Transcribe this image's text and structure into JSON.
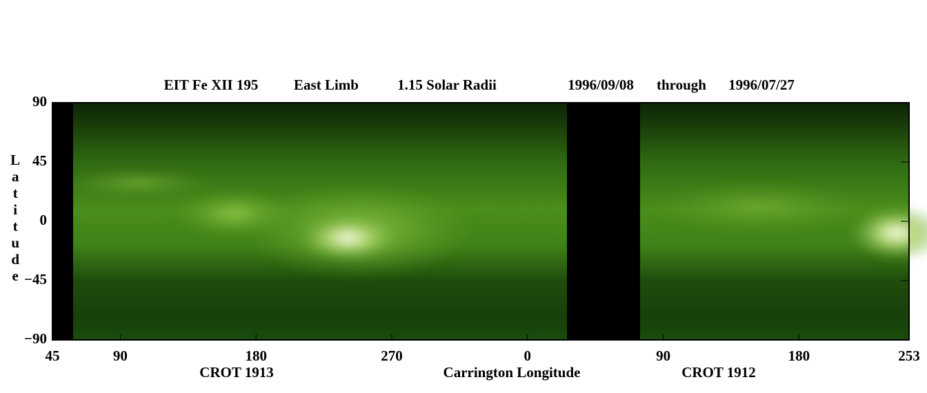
{
  "chart_data": {
    "type": "synoptic-map",
    "title": [
      "EIT Fe XII 195",
      "East Limb",
      "1.15 Solar Radii",
      "1996/09/08",
      "through",
      "1996/07/27"
    ],
    "y_label": "Latitude",
    "annotations": [
      "CROT 1913",
      "Carrington Longitude",
      "CROT 1912"
    ],
    "xlim": [
      45,
      613
    ],
    "xticks": [
      45,
      90,
      180,
      270,
      {
        "value": 360,
        "label": "0"
      },
      {
        "value": 450,
        "label": "90"
      },
      {
        "value": 540,
        "label": "180"
      },
      {
        "value": 613,
        "label": "253"
      }
    ],
    "ylim": [
      -90,
      90
    ],
    "yticks": [
      90,
      45,
      0,
      {
        "value": -45,
        "label": "−45"
      },
      {
        "value": -90,
        "label": "−90"
      }
    ]
  }
}
